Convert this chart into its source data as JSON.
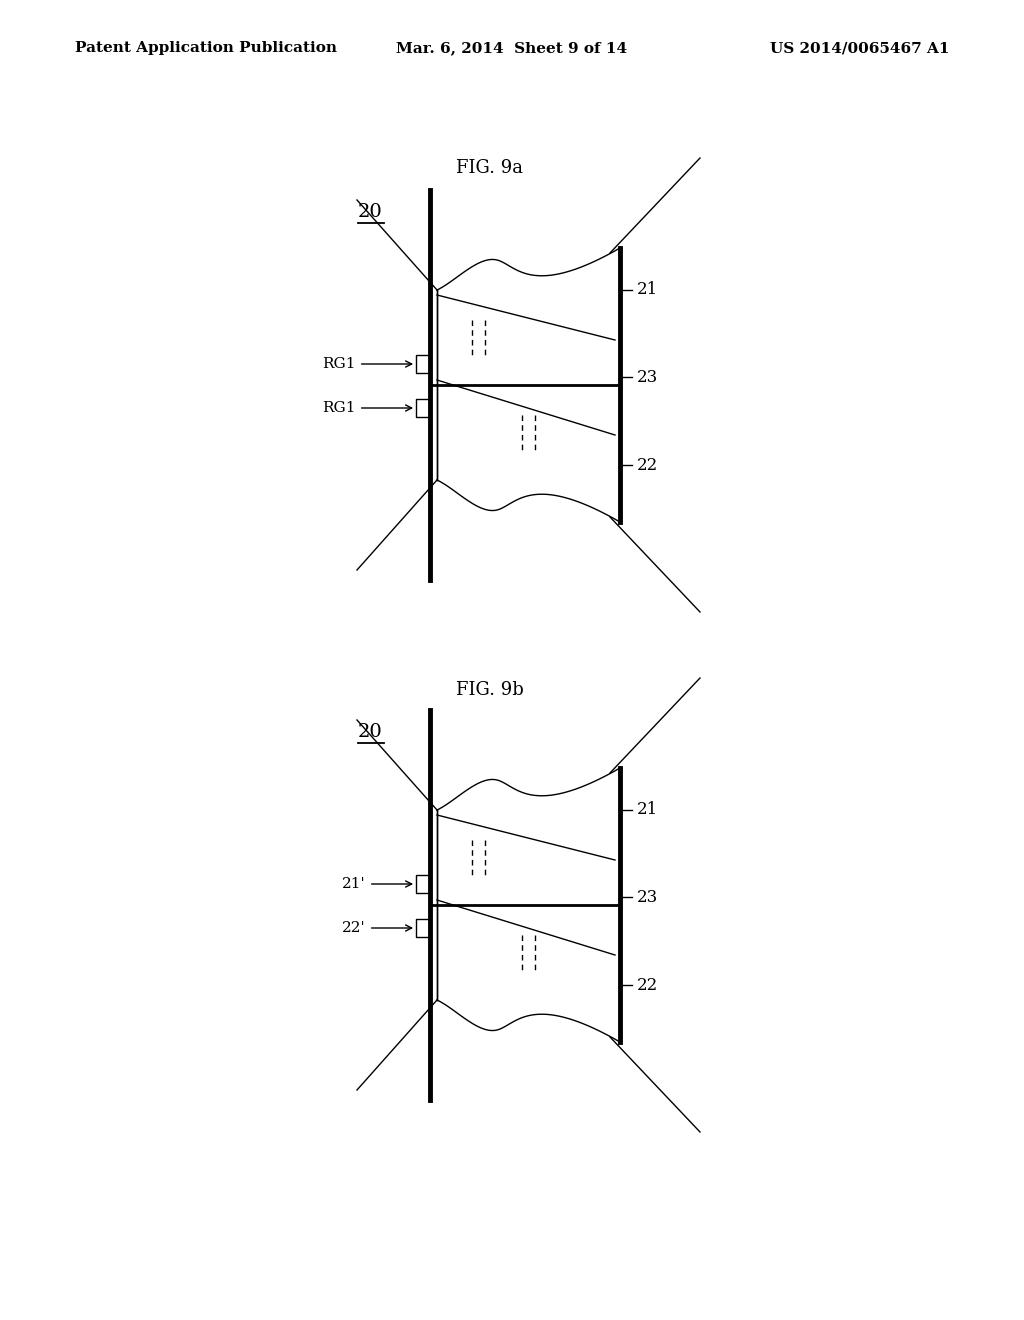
{
  "background_color": "#ffffff",
  "header_left": "Patent Application Publication",
  "header_mid": "Mar. 6, 2014  Sheet 9 of 14",
  "header_right": "US 2014/0065467 A1",
  "fig9a_label": "FIG. 9a",
  "fig9b_label": "FIG. 9b",
  "label_20": "20",
  "label_21": "21",
  "label_22": "22",
  "label_23": "23",
  "label_RG1": "RG1",
  "label_21p": "21'",
  "label_22p": "22'"
}
